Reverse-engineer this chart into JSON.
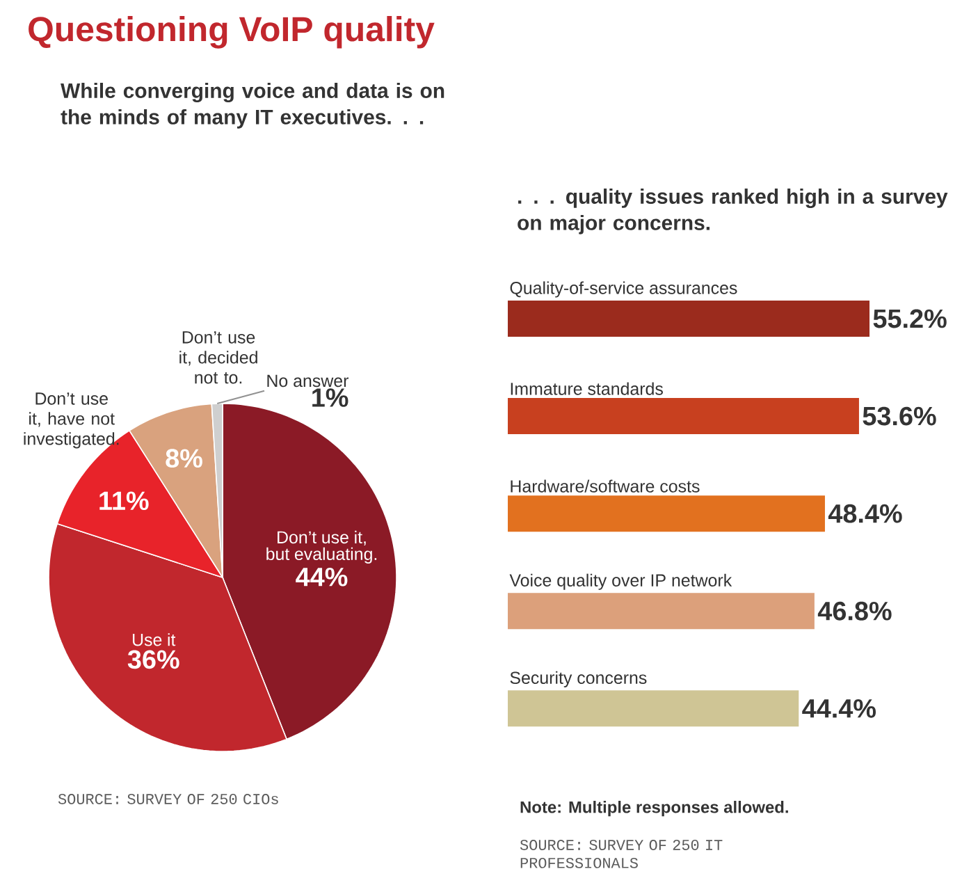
{
  "chart_data": [
    {
      "type": "pie",
      "title": "Questioning VoIP quality",
      "subtitle": "While converging voice and data is on the minds of many IT executives. . .",
      "categories": [
        "Don’t use it, but evaluating.",
        "Use it",
        "Don’t use it, have not investigated.",
        "Don’t use it, decided not to.",
        "No answer"
      ],
      "values": [
        44,
        36,
        11,
        8,
        1
      ],
      "value_labels": [
        "44%",
        "36%",
        "11%",
        "8%",
        "1%"
      ],
      "colors": [
        "#8b1a26",
        "#c1272d",
        "#e8232a",
        "#d9a27e",
        "#cfcfcf"
      ],
      "annotations": [
        "SOURCE: SURVEY OF 250 CIOs"
      ]
    },
    {
      "type": "bar",
      "orientation": "horizontal",
      "title": ". . . quality issues ranked high in a survey on major concerns.",
      "categories": [
        "Quality-of-service assurances",
        "Immature standards",
        "Hardware/software costs",
        "Voice quality over IP network",
        "Security concerns"
      ],
      "values": [
        55.2,
        53.6,
        48.4,
        46.8,
        44.4
      ],
      "value_labels": [
        "55.2%",
        "53.6%",
        "48.4%",
        "46.8%",
        "44.4%"
      ],
      "colors": [
        "#9b2b1d",
        "#c8401f",
        "#e2711f",
        "#dca07b",
        "#cfc595"
      ],
      "annotations": [
        "Note: Multiple responses allowed.",
        "SOURCE: SURVEY OF 250 IT PROFESSIONALS"
      ]
    }
  ]
}
